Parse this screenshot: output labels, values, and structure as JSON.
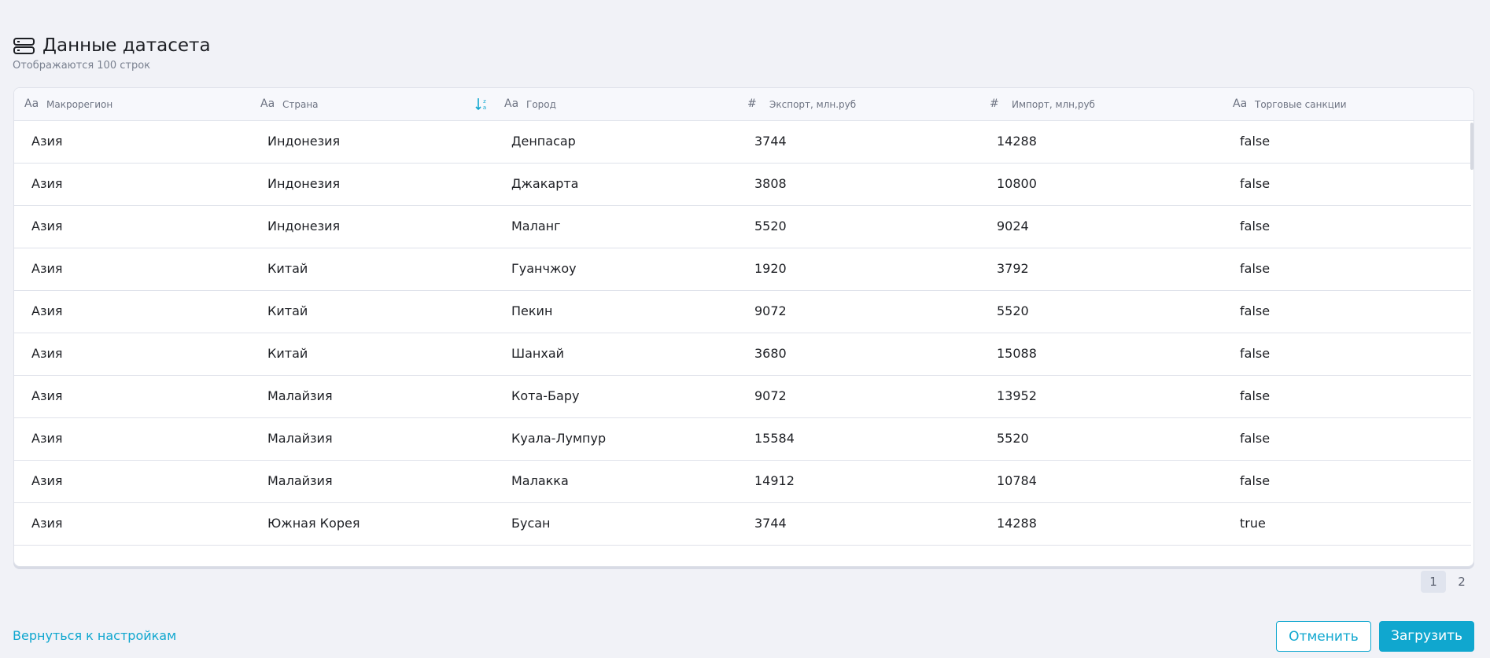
{
  "header": {
    "title": "Данные датасета",
    "subtitle": "Отображаются 100 строк"
  },
  "table": {
    "columns": [
      {
        "icon": "Aa",
        "label": "Макрорегион"
      },
      {
        "icon": "Aa",
        "label": "Страна"
      },
      {
        "icon": "Aa",
        "label": "Город"
      },
      {
        "icon": "#",
        "label": "Экспорт, млн.руб"
      },
      {
        "icon": "#",
        "label": "Импорт, млн,руб"
      },
      {
        "icon": "Aa",
        "label": "Торговые санкции"
      }
    ],
    "rows": [
      [
        "Азия",
        "Индонезия",
        "Денпасар",
        "3744",
        "14288",
        "false"
      ],
      [
        "Азия",
        "Индонезия",
        "Джакарта",
        "3808",
        "10800",
        "false"
      ],
      [
        "Азия",
        "Индонезия",
        "Маланг",
        "5520",
        "9024",
        "false"
      ],
      [
        "Азия",
        "Китай",
        "Гуанчжоу",
        "1920",
        "3792",
        "false"
      ],
      [
        "Азия",
        "Китай",
        "Пекин",
        "9072",
        "5520",
        "false"
      ],
      [
        "Азия",
        "Китай",
        "Шанхай",
        "3680",
        "15088",
        "false"
      ],
      [
        "Азия",
        "Малайзия",
        "Кота-Бару",
        "9072",
        "13952",
        "false"
      ],
      [
        "Азия",
        "Малайзия",
        "Куала-Лумпур",
        "15584",
        "5520",
        "false"
      ],
      [
        "Азия",
        "Малайзия",
        "Малакка",
        "14912",
        "10784",
        "false"
      ],
      [
        "Азия",
        "Южная Корея",
        "Бусан",
        "3744",
        "14288",
        "true"
      ]
    ]
  },
  "pagination": {
    "pages": [
      "1",
      "2"
    ]
  },
  "footer": {
    "back": "Вернуться к настройкам",
    "cancel": "Отменить",
    "submit": "Загрузить"
  }
}
